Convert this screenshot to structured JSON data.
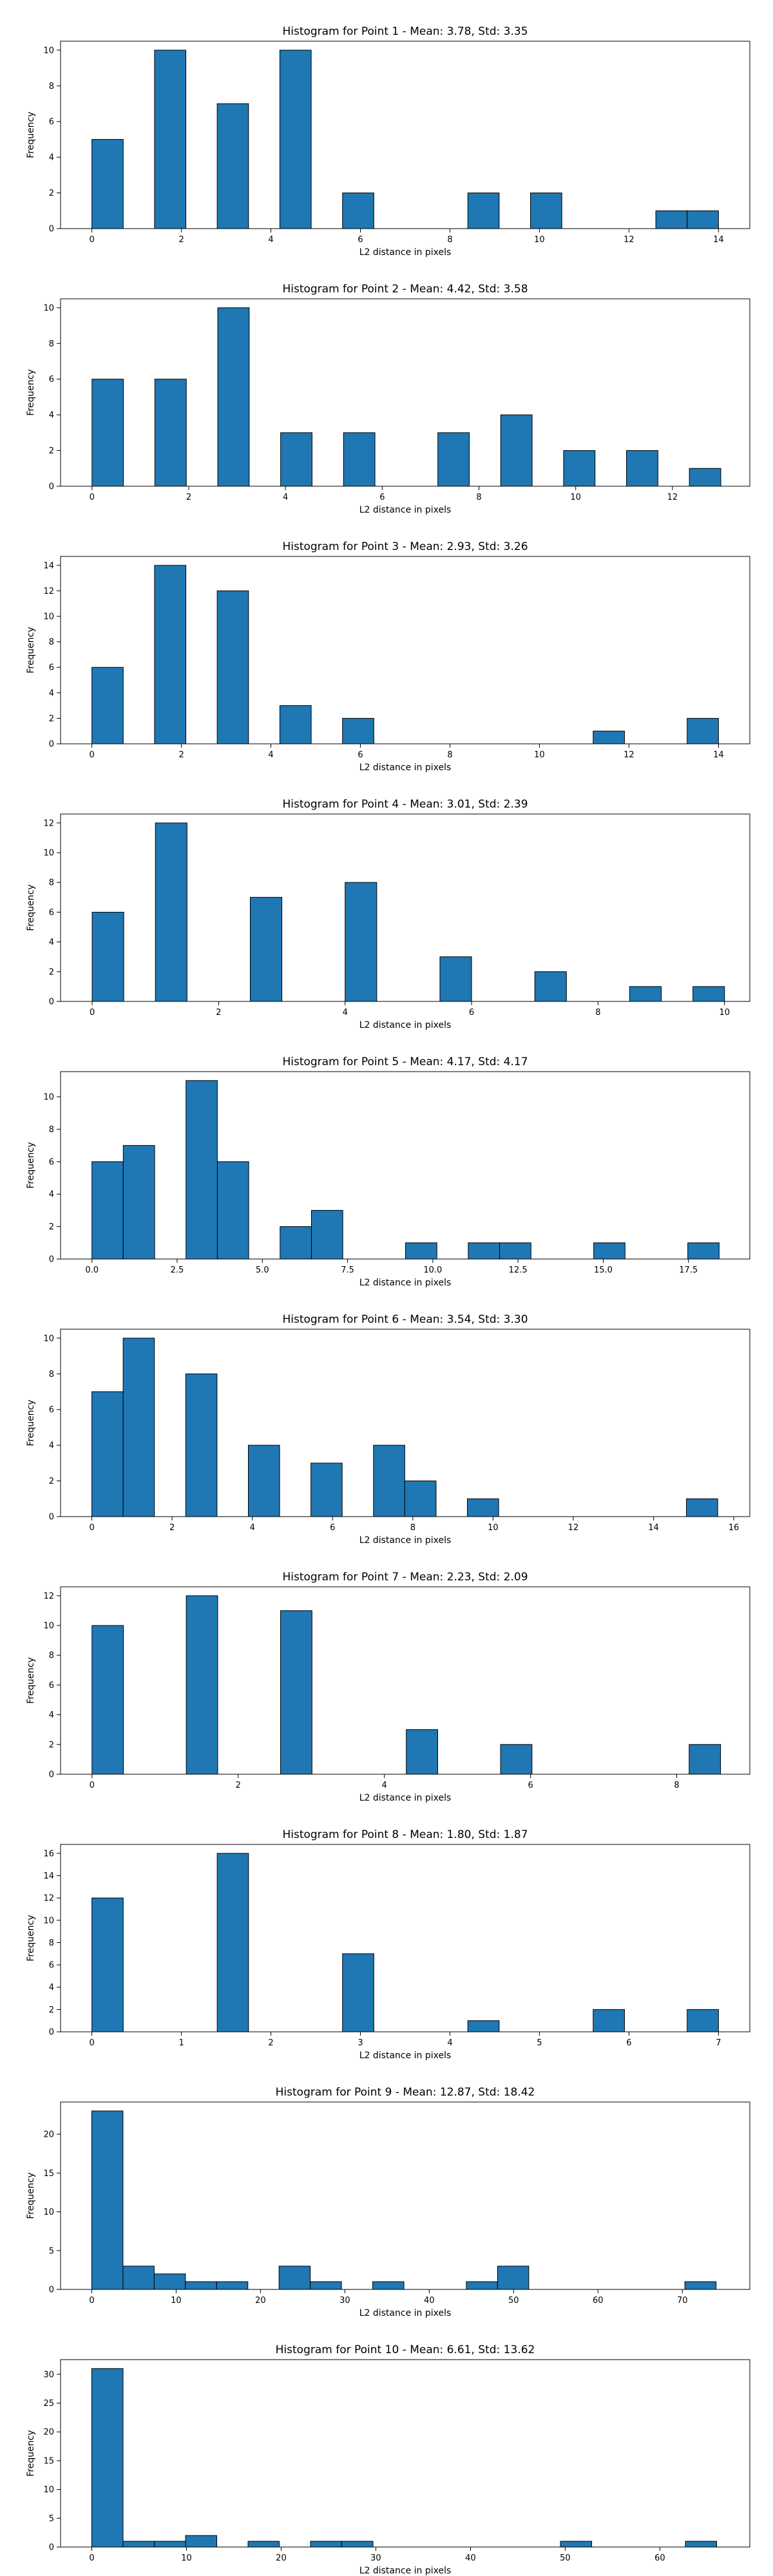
{
  "figure": {
    "bar_color": "#1f77b4",
    "edge_color": "#000000"
  },
  "chart_data": [
    {
      "type": "bar",
      "title": "Histogram for Point 1 - Mean: 3.78, Std: 3.35",
      "xlabel": "L2 distance in pixels",
      "ylabel": "Frequency",
      "xlim": [
        -0.7,
        14.7
      ],
      "ylim": [
        0,
        10.5
      ],
      "xticks": [
        0,
        2,
        4,
        6,
        8,
        10,
        12,
        14
      ],
      "xtick_labels": [
        "0",
        "2",
        "4",
        "6",
        "8",
        "10",
        "12",
        "14"
      ],
      "yticks": [
        0,
        2,
        4,
        6,
        8,
        10
      ],
      "ytick_labels": [
        "0",
        "2",
        "4",
        "6",
        "8",
        "10"
      ],
      "bins": [
        {
          "start": 0.0,
          "end": 0.7,
          "count": 5
        },
        {
          "start": 1.4,
          "end": 2.1,
          "count": 10
        },
        {
          "start": 2.8,
          "end": 3.5,
          "count": 7
        },
        {
          "start": 4.2,
          "end": 4.9,
          "count": 10
        },
        {
          "start": 5.6,
          "end": 6.3,
          "count": 2
        },
        {
          "start": 8.4,
          "end": 9.1,
          "count": 2
        },
        {
          "start": 9.8,
          "end": 10.5,
          "count": 2
        },
        {
          "start": 12.6,
          "end": 13.3,
          "count": 1
        },
        {
          "start": 13.3,
          "end": 14.0,
          "count": 1
        }
      ]
    },
    {
      "type": "bar",
      "title": "Histogram for Point 2 - Mean: 4.42, Std: 3.58",
      "xlabel": "L2 distance in pixels",
      "ylabel": "Frequency",
      "xlim": [
        -0.65,
        13.6
      ],
      "ylim": [
        0,
        10.5
      ],
      "xticks": [
        0,
        2,
        4,
        6,
        8,
        10,
        12
      ],
      "xtick_labels": [
        "0",
        "2",
        "4",
        "6",
        "8",
        "10",
        "12"
      ],
      "yticks": [
        0,
        2,
        4,
        6,
        8,
        10
      ],
      "ytick_labels": [
        "0",
        "2",
        "4",
        "6",
        "8",
        "10"
      ],
      "bins": [
        {
          "start": 0.0,
          "end": 0.65,
          "count": 6
        },
        {
          "start": 1.3,
          "end": 1.95,
          "count": 6
        },
        {
          "start": 2.6,
          "end": 3.25,
          "count": 10
        },
        {
          "start": 3.9,
          "end": 4.55,
          "count": 3
        },
        {
          "start": 5.2,
          "end": 5.85,
          "count": 3
        },
        {
          "start": 7.15,
          "end": 7.8,
          "count": 3
        },
        {
          "start": 8.45,
          "end": 9.1,
          "count": 4
        },
        {
          "start": 9.75,
          "end": 10.4,
          "count": 2
        },
        {
          "start": 11.05,
          "end": 11.7,
          "count": 2
        },
        {
          "start": 12.35,
          "end": 13.0,
          "count": 1
        }
      ]
    },
    {
      "type": "bar",
      "title": "Histogram for Point 3 - Mean: 2.93, Std: 3.26",
      "xlabel": "L2 distance in pixels",
      "ylabel": "Frequency",
      "xlim": [
        -0.7,
        14.7
      ],
      "ylim": [
        0,
        14.7
      ],
      "xticks": [
        0,
        2,
        4,
        6,
        8,
        10,
        12,
        14
      ],
      "xtick_labels": [
        "0",
        "2",
        "4",
        "6",
        "8",
        "10",
        "12",
        "14"
      ],
      "yticks": [
        0,
        2,
        4,
        6,
        8,
        10,
        12,
        14
      ],
      "ytick_labels": [
        "0",
        "2",
        "4",
        "6",
        "8",
        "10",
        "12",
        "14"
      ],
      "bins": [
        {
          "start": 0.0,
          "end": 0.7,
          "count": 6
        },
        {
          "start": 1.4,
          "end": 2.1,
          "count": 14
        },
        {
          "start": 2.8,
          "end": 3.5,
          "count": 12
        },
        {
          "start": 4.2,
          "end": 4.9,
          "count": 3
        },
        {
          "start": 5.6,
          "end": 6.3,
          "count": 2
        },
        {
          "start": 11.2,
          "end": 11.9,
          "count": 1
        },
        {
          "start": 13.3,
          "end": 14.0,
          "count": 2
        }
      ]
    },
    {
      "type": "bar",
      "title": "Histogram for Point 4 - Mean: 3.01, Std: 2.39",
      "xlabel": "L2 distance in pixels",
      "ylabel": "Frequency",
      "xlim": [
        -0.5,
        10.4
      ],
      "ylim": [
        0,
        12.6
      ],
      "xticks": [
        0,
        2,
        4,
        6,
        8,
        10
      ],
      "xtick_labels": [
        "0",
        "2",
        "4",
        "6",
        "8",
        "10"
      ],
      "yticks": [
        0,
        2,
        4,
        6,
        8,
        10,
        12
      ],
      "ytick_labels": [
        "0",
        "2",
        "4",
        "6",
        "8",
        "10",
        "12"
      ],
      "bins": [
        {
          "start": 0.0,
          "end": 0.5,
          "count": 6
        },
        {
          "start": 1.0,
          "end": 1.5,
          "count": 12
        },
        {
          "start": 2.5,
          "end": 3.0,
          "count": 7
        },
        {
          "start": 4.0,
          "end": 4.5,
          "count": 8
        },
        {
          "start": 5.5,
          "end": 6.0,
          "count": 3
        },
        {
          "start": 7.0,
          "end": 7.5,
          "count": 2
        },
        {
          "start": 8.5,
          "end": 9.0,
          "count": 1
        },
        {
          "start": 9.5,
          "end": 10.0,
          "count": 1
        }
      ]
    },
    {
      "type": "bar",
      "title": "Histogram for Point 5 - Mean: 4.17, Std: 4.17",
      "xlabel": "L2 distance in pixels",
      "ylabel": "Frequency",
      "xlim": [
        -0.92,
        19.3
      ],
      "ylim": [
        0,
        11.55
      ],
      "xticks": [
        0.0,
        2.5,
        5.0,
        7.5,
        10.0,
        12.5,
        15.0,
        17.5
      ],
      "xtick_labels": [
        "0.0",
        "2.5",
        "5.0",
        "7.5",
        "10.0",
        "12.5",
        "15.0",
        "17.5"
      ],
      "yticks": [
        0,
        2,
        4,
        6,
        8,
        10
      ],
      "ytick_labels": [
        "0",
        "2",
        "4",
        "6",
        "8",
        "10"
      ],
      "bins": [
        {
          "start": 0.0,
          "end": 0.92,
          "count": 6
        },
        {
          "start": 0.92,
          "end": 1.84,
          "count": 7
        },
        {
          "start": 2.76,
          "end": 3.68,
          "count": 11
        },
        {
          "start": 3.68,
          "end": 4.6,
          "count": 6
        },
        {
          "start": 5.52,
          "end": 6.44,
          "count": 2
        },
        {
          "start": 6.44,
          "end": 7.36,
          "count": 3
        },
        {
          "start": 9.2,
          "end": 10.12,
          "count": 1
        },
        {
          "start": 11.04,
          "end": 11.96,
          "count": 1
        },
        {
          "start": 11.96,
          "end": 12.88,
          "count": 1
        },
        {
          "start": 14.72,
          "end": 15.64,
          "count": 1
        },
        {
          "start": 17.48,
          "end": 18.4,
          "count": 1
        }
      ]
    },
    {
      "type": "bar",
      "title": "Histogram for Point 6 - Mean: 3.54, Std: 3.30",
      "xlabel": "L2 distance in pixels",
      "ylabel": "Frequency",
      "xlim": [
        -0.78,
        16.4
      ],
      "ylim": [
        0,
        10.5
      ],
      "xticks": [
        0,
        2,
        4,
        6,
        8,
        10,
        12,
        14,
        16
      ],
      "xtick_labels": [
        "0",
        "2",
        "4",
        "6",
        "8",
        "10",
        "12",
        "14",
        "16"
      ],
      "yticks": [
        0,
        2,
        4,
        6,
        8,
        10
      ],
      "ytick_labels": [
        "0",
        "2",
        "4",
        "6",
        "8",
        "10"
      ],
      "bins": [
        {
          "start": 0.0,
          "end": 0.78,
          "count": 7
        },
        {
          "start": 0.78,
          "end": 1.56,
          "count": 10
        },
        {
          "start": 2.34,
          "end": 3.12,
          "count": 8
        },
        {
          "start": 3.9,
          "end": 4.68,
          "count": 4
        },
        {
          "start": 5.46,
          "end": 6.24,
          "count": 3
        },
        {
          "start": 7.02,
          "end": 7.8,
          "count": 4
        },
        {
          "start": 7.8,
          "end": 8.58,
          "count": 2
        },
        {
          "start": 9.36,
          "end": 10.14,
          "count": 1
        },
        {
          "start": 14.82,
          "end": 15.6,
          "count": 1
        }
      ]
    },
    {
      "type": "bar",
      "title": "Histogram for Point 7 - Mean: 2.23, Std: 2.09",
      "xlabel": "L2 distance in pixels",
      "ylabel": "Frequency",
      "xlim": [
        -0.43,
        9.0
      ],
      "ylim": [
        0,
        12.6
      ],
      "xticks": [
        0,
        2,
        4,
        6,
        8
      ],
      "xtick_labels": [
        "0",
        "2",
        "4",
        "6",
        "8"
      ],
      "yticks": [
        0,
        2,
        4,
        6,
        8,
        10,
        12
      ],
      "ytick_labels": [
        "0",
        "2",
        "4",
        "6",
        "8",
        "10",
        "12"
      ],
      "bins": [
        {
          "start": 0.0,
          "end": 0.43,
          "count": 10
        },
        {
          "start": 1.29,
          "end": 1.72,
          "count": 12
        },
        {
          "start": 2.58,
          "end": 3.01,
          "count": 11
        },
        {
          "start": 4.3,
          "end": 4.73,
          "count": 3
        },
        {
          "start": 5.59,
          "end": 6.02,
          "count": 2
        },
        {
          "start": 8.17,
          "end": 8.6,
          "count": 2
        }
      ]
    },
    {
      "type": "bar",
      "title": "Histogram for Point 8 - Mean: 1.80, Std: 1.87",
      "xlabel": "L2 distance in pixels",
      "ylabel": "Frequency",
      "xlim": [
        -0.35,
        7.35
      ],
      "ylim": [
        0,
        16.8
      ],
      "xticks": [
        0,
        1,
        2,
        3,
        4,
        5,
        6,
        7
      ],
      "xtick_labels": [
        "0",
        "1",
        "2",
        "3",
        "4",
        "5",
        "6",
        "7"
      ],
      "yticks": [
        0,
        2,
        4,
        6,
        8,
        10,
        12,
        14,
        16
      ],
      "ytick_labels": [
        "0",
        "2",
        "4",
        "6",
        "8",
        "10",
        "12",
        "14",
        "16"
      ],
      "bins": [
        {
          "start": 0.0,
          "end": 0.35,
          "count": 12
        },
        {
          "start": 1.4,
          "end": 1.75,
          "count": 16
        },
        {
          "start": 2.8,
          "end": 3.15,
          "count": 7
        },
        {
          "start": 4.2,
          "end": 4.55,
          "count": 1
        },
        {
          "start": 5.6,
          "end": 5.95,
          "count": 2
        },
        {
          "start": 6.65,
          "end": 7.0,
          "count": 2
        }
      ]
    },
    {
      "type": "bar",
      "title": "Histogram for Point 9 - Mean: 12.87, Std: 18.42",
      "xlabel": "L2 distance in pixels",
      "ylabel": "Frequency",
      "xlim": [
        -3.7,
        78.0
      ],
      "ylim": [
        0,
        24.15
      ],
      "xticks": [
        0,
        10,
        20,
        30,
        40,
        50,
        60,
        70
      ],
      "xtick_labels": [
        "0",
        "10",
        "20",
        "30",
        "40",
        "50",
        "60",
        "70"
      ],
      "yticks": [
        0,
        5,
        10,
        15,
        20
      ],
      "ytick_labels": [
        "0",
        "5",
        "10",
        "15",
        "20"
      ],
      "bins": [
        {
          "start": 0.0,
          "end": 3.7,
          "count": 23
        },
        {
          "start": 3.7,
          "end": 7.4,
          "count": 3
        },
        {
          "start": 7.4,
          "end": 11.1,
          "count": 2
        },
        {
          "start": 11.1,
          "end": 14.8,
          "count": 1
        },
        {
          "start": 14.8,
          "end": 18.5,
          "count": 1
        },
        {
          "start": 22.2,
          "end": 25.9,
          "count": 3
        },
        {
          "start": 25.9,
          "end": 29.6,
          "count": 1
        },
        {
          "start": 33.3,
          "end": 37.0,
          "count": 1
        },
        {
          "start": 44.4,
          "end": 48.1,
          "count": 1
        },
        {
          "start": 48.1,
          "end": 51.8,
          "count": 3
        },
        {
          "start": 70.3,
          "end": 74.0,
          "count": 1
        }
      ]
    },
    {
      "type": "bar",
      "title": "Histogram for Point 10 - Mean: 6.61, Std: 13.62",
      "xlabel": "L2 distance in pixels",
      "ylabel": "Frequency",
      "xlim": [
        -3.3,
        69.5
      ],
      "ylim": [
        0,
        32.55
      ],
      "xticks": [
        0,
        10,
        20,
        30,
        40,
        50,
        60
      ],
      "xtick_labels": [
        "0",
        "10",
        "20",
        "30",
        "40",
        "50",
        "60"
      ],
      "yticks": [
        0,
        5,
        10,
        15,
        20,
        25,
        30
      ],
      "ytick_labels": [
        "0",
        "5",
        "10",
        "15",
        "20",
        "25",
        "30"
      ],
      "bins": [
        {
          "start": 0.0,
          "end": 3.3,
          "count": 31
        },
        {
          "start": 3.3,
          "end": 6.6,
          "count": 1
        },
        {
          "start": 6.6,
          "end": 9.9,
          "count": 1
        },
        {
          "start": 9.9,
          "end": 13.2,
          "count": 2
        },
        {
          "start": 16.5,
          "end": 19.8,
          "count": 1
        },
        {
          "start": 23.1,
          "end": 26.4,
          "count": 1
        },
        {
          "start": 26.4,
          "end": 29.7,
          "count": 1
        },
        {
          "start": 49.5,
          "end": 52.8,
          "count": 1
        },
        {
          "start": 62.7,
          "end": 66.0,
          "count": 1
        }
      ]
    }
  ]
}
